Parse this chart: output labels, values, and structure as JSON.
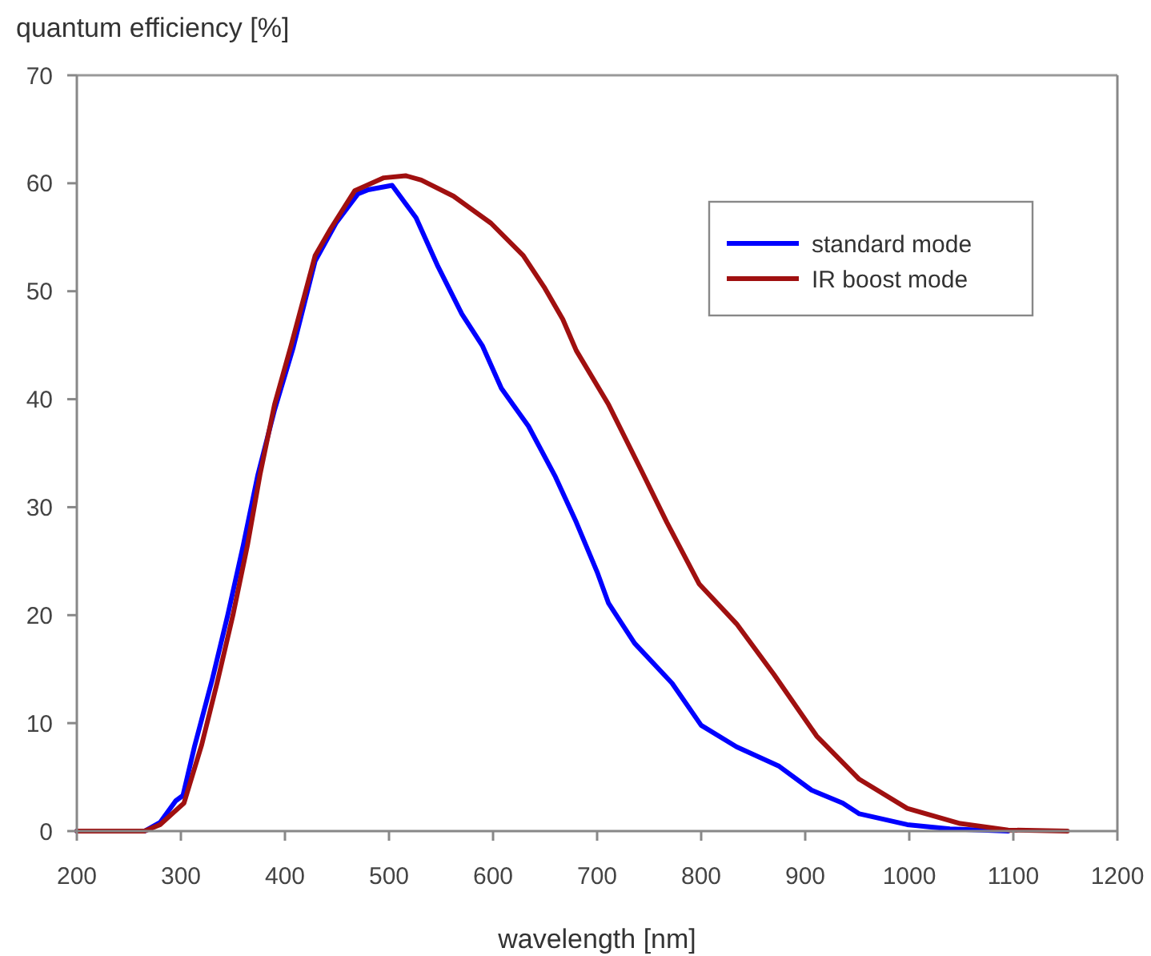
{
  "chart_data": {
    "type": "line",
    "xlabel": "wavelength [nm]",
    "ylabel": "quantum efficiency [%]",
    "xlim": [
      200,
      1200
    ],
    "ylim": [
      0,
      70
    ],
    "xticks": [
      200,
      300,
      400,
      500,
      600,
      700,
      800,
      900,
      1000,
      1100,
      1200
    ],
    "yticks": [
      0,
      10,
      20,
      30,
      40,
      50,
      60,
      70
    ],
    "grid": false,
    "legend": "top right",
    "marker": "none",
    "line_style": "solid",
    "series": [
      {
        "name": "standard mode",
        "color": "#0000ff",
        "x": [
          200,
          265,
          280,
          295,
          302,
          313,
          330,
          345,
          360,
          374,
          390,
          408,
          429,
          449,
          470,
          480,
          503,
          526,
          547,
          570,
          590,
          608,
          634,
          660,
          680,
          700,
          711,
          736,
          772,
          800,
          834,
          875,
          906,
          936,
          952,
          998,
          1039,
          1095
        ],
        "values": [
          0,
          0,
          0.8,
          2.8,
          3.3,
          7.8,
          14,
          20,
          26.5,
          33,
          39,
          44.8,
          52.8,
          56.3,
          59,
          59.4,
          59.8,
          56.8,
          52.3,
          47.9,
          44.9,
          41,
          37.5,
          32.8,
          28.6,
          24,
          21.1,
          17.4,
          13.7,
          9.8,
          7.8,
          6,
          3.8,
          2.6,
          1.6,
          0.6,
          0.2,
          0
        ]
      },
      {
        "name": "IR boost mode",
        "color": "#a01010",
        "x": [
          200,
          265,
          280,
          303,
          320,
          335,
          350,
          364,
          376,
          390,
          406,
          429,
          444,
          467,
          495,
          516,
          531,
          562,
          598,
          629,
          649,
          667,
          680,
          711,
          742,
          767,
          798,
          834,
          870,
          911,
          952,
          998,
          1049,
          1095,
          1152
        ],
        "values": [
          0,
          0,
          0.6,
          2.6,
          8,
          13.8,
          20,
          26.5,
          33,
          39.5,
          45,
          53.3,
          55.8,
          59.3,
          60.5,
          60.7,
          60.3,
          58.8,
          56.3,
          53.3,
          50.4,
          47.4,
          44.5,
          39.5,
          33.5,
          28.6,
          22.9,
          19.2,
          14.5,
          8.8,
          4.8,
          2.1,
          0.7,
          0.1,
          0
        ]
      }
    ]
  }
}
